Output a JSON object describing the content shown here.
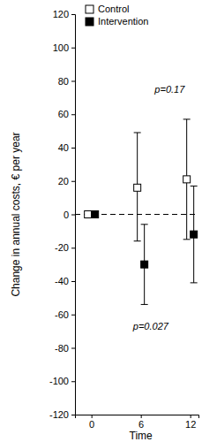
{
  "chart_data": {
    "type": "scatter",
    "x_label": "Time",
    "y_label": "Change in annual costs, € per year",
    "x": [
      0,
      6,
      12
    ],
    "xlim": [
      -2,
      13
    ],
    "xticks": [
      0,
      6,
      12
    ],
    "ylim": [
      -120,
      120
    ],
    "yticks": [
      -120,
      -100,
      -80,
      -60,
      -40,
      -20,
      0,
      20,
      40,
      60,
      80,
      100,
      120
    ],
    "reference_line": 0,
    "legend": "upper left",
    "series": [
      {
        "name": "Control",
        "color": "#000000",
        "marker": "square-open",
        "values": [
          0,
          16,
          21
        ],
        "lower": [
          null,
          -16,
          -15
        ],
        "upper": [
          null,
          49,
          57
        ]
      },
      {
        "name": "Intervention",
        "color": "#000000",
        "marker": "square",
        "values": [
          0,
          -30,
          -12
        ],
        "lower": [
          null,
          -54,
          -41
        ],
        "upper": [
          null,
          -6,
          17
        ]
      }
    ],
    "annotations": [
      {
        "text": "p=0.027",
        "x": 7.2,
        "y": -67
      },
      {
        "text": "p=0.17",
        "x": 9.5,
        "y": 75
      }
    ]
  }
}
